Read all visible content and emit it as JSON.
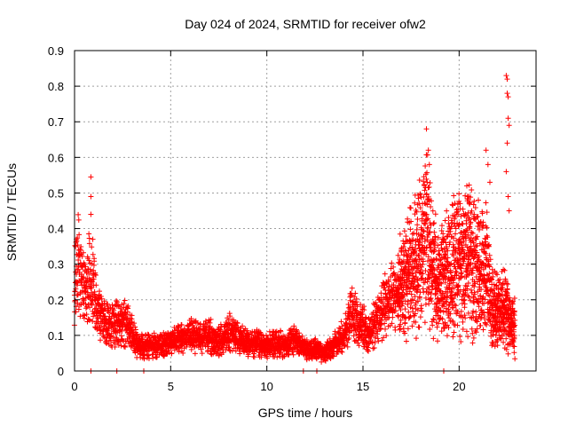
{
  "chart_data": {
    "type": "scatter",
    "title": "Day 024 of 2024, SRMTID for receiver ofw2",
    "xlabel": "GPS time / hours",
    "ylabel": "SRMTID / TECUs",
    "xlim": [
      0,
      24
    ],
    "ylim": [
      0,
      0.9
    ],
    "xticks": [
      0,
      5,
      10,
      15,
      20
    ],
    "xtick_labels": [
      "0",
      "5",
      "10",
      "15",
      "20"
    ],
    "yticks": [
      0,
      0.1,
      0.2,
      0.3,
      0.4,
      0.5,
      0.6,
      0.7,
      0.8,
      0.9
    ],
    "ytick_labels": [
      "0",
      "0.1",
      "0.2",
      "0.3",
      "0.4",
      "0.5",
      "0.6",
      "0.7",
      "0.8",
      "0.9"
    ],
    "grid": true,
    "marker": "+",
    "color": "#ff0000",
    "series": [
      {
        "name": "SRMTID",
        "envelope": [
          [
            0.0,
            0.24
          ],
          [
            0.2,
            0.3
          ],
          [
            0.5,
            0.22
          ],
          [
            0.8,
            0.26
          ],
          [
            1.0,
            0.22
          ],
          [
            1.3,
            0.16
          ],
          [
            1.7,
            0.13
          ],
          [
            2.2,
            0.13
          ],
          [
            2.6,
            0.14
          ],
          [
            3.0,
            0.11
          ],
          [
            3.3,
            0.07
          ],
          [
            3.8,
            0.07
          ],
          [
            4.3,
            0.07
          ],
          [
            5.0,
            0.08
          ],
          [
            5.5,
            0.09
          ],
          [
            6.0,
            0.1
          ],
          [
            6.5,
            0.09
          ],
          [
            7.0,
            0.1
          ],
          [
            7.5,
            0.08
          ],
          [
            8.0,
            0.11
          ],
          [
            8.5,
            0.09
          ],
          [
            9.0,
            0.08
          ],
          [
            9.5,
            0.08
          ],
          [
            10.0,
            0.07
          ],
          [
            10.5,
            0.08
          ],
          [
            11.0,
            0.07
          ],
          [
            11.5,
            0.09
          ],
          [
            12.0,
            0.06
          ],
          [
            12.5,
            0.06
          ],
          [
            13.0,
            0.05
          ],
          [
            13.5,
            0.07
          ],
          [
            14.0,
            0.1
          ],
          [
            14.4,
            0.16
          ],
          [
            14.8,
            0.14
          ],
          [
            15.2,
            0.11
          ],
          [
            15.6,
            0.13
          ],
          [
            16.0,
            0.18
          ],
          [
            16.5,
            0.2
          ],
          [
            17.0,
            0.24
          ],
          [
            17.5,
            0.28
          ],
          [
            18.0,
            0.33
          ],
          [
            18.3,
            0.4
          ],
          [
            18.6,
            0.28
          ],
          [
            19.0,
            0.24
          ],
          [
            19.3,
            0.26
          ],
          [
            19.6,
            0.28
          ],
          [
            19.9,
            0.3
          ],
          [
            20.2,
            0.27
          ],
          [
            20.5,
            0.32
          ],
          [
            20.8,
            0.28
          ],
          [
            21.1,
            0.25
          ],
          [
            21.4,
            0.3
          ],
          [
            21.7,
            0.18
          ],
          [
            22.0,
            0.16
          ],
          [
            22.3,
            0.18
          ],
          [
            22.6,
            0.14
          ],
          [
            22.9,
            0.12
          ]
        ],
        "extreme_points": [
          [
            0.1,
            0.37
          ],
          [
            0.85,
            0.545
          ],
          [
            0.85,
            0.49
          ],
          [
            0.85,
            0.44
          ],
          [
            0.95,
            0.37
          ],
          [
            18.3,
            0.68
          ],
          [
            18.4,
            0.62
          ],
          [
            18.45,
            0.58
          ],
          [
            20.4,
            0.52
          ],
          [
            20.5,
            0.49
          ],
          [
            21.0,
            0.48
          ],
          [
            21.4,
            0.62
          ],
          [
            21.5,
            0.58
          ],
          [
            21.6,
            0.53
          ],
          [
            22.45,
            0.83
          ],
          [
            22.5,
            0.82
          ],
          [
            22.5,
            0.78
          ],
          [
            22.55,
            0.77
          ],
          [
            22.55,
            0.71
          ],
          [
            22.6,
            0.69
          ],
          [
            22.5,
            0.64
          ],
          [
            22.45,
            0.56
          ],
          [
            22.55,
            0.49
          ],
          [
            22.6,
            0.45
          ],
          [
            0.85,
            0.0
          ],
          [
            2.2,
            0.0
          ],
          [
            3.6,
            0.0
          ],
          [
            11.9,
            0.0
          ],
          [
            12.6,
            0.0
          ],
          [
            19.2,
            0.0
          ]
        ]
      }
    ]
  }
}
